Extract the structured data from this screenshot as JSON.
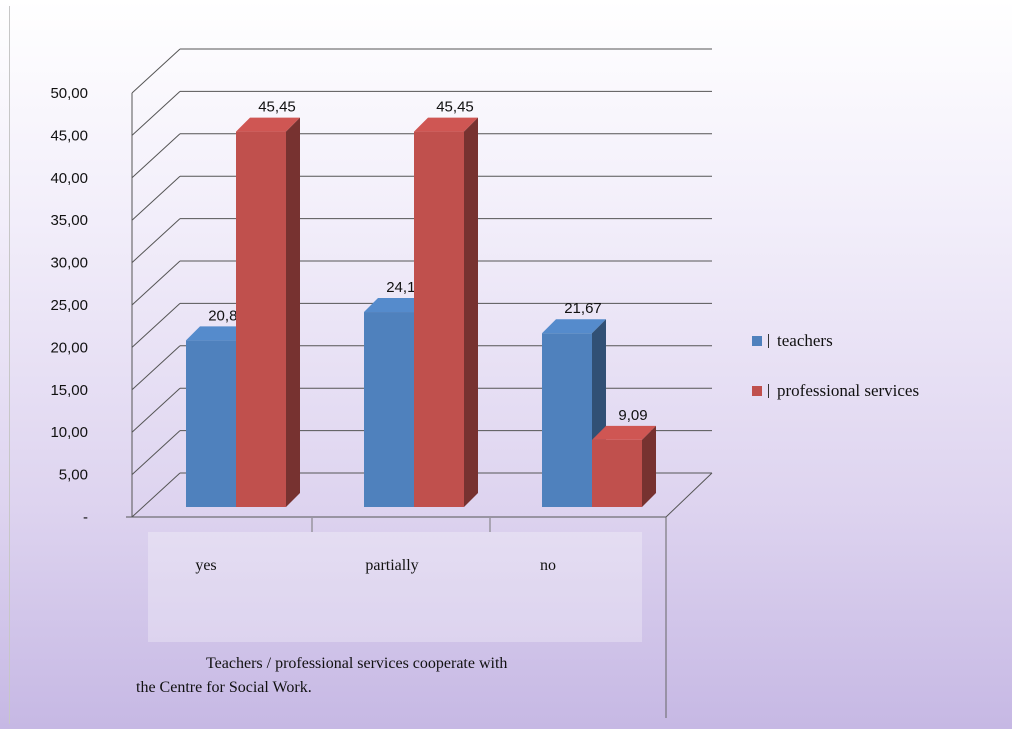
{
  "chart_data": {
    "type": "bar",
    "categories": [
      "yes",
      "partially",
      "no"
    ],
    "series": [
      {
        "name": "teachers",
        "color": "#4f81bd",
        "values": [
          20.83,
          24.17,
          21.67
        ],
        "labels": [
          "20,83",
          "24,17",
          "21,67"
        ]
      },
      {
        "name": "professional services",
        "color": "#c0504d",
        "values": [
          45.45,
          45.45,
          9.09
        ],
        "labels": [
          "45,45",
          "45,45",
          "9,09"
        ]
      }
    ],
    "ylim": [
      0,
      50
    ],
    "yticks": [
      "-",
      "5,00",
      "10,00",
      "15,00",
      "20,00",
      "25,00",
      "30,00",
      "35,00",
      "40,00",
      "45,00",
      "50,00"
    ],
    "grid": true,
    "legend_position": "right",
    "style": "3d-clustered-column"
  },
  "caption": {
    "line1": "Teachers / professional services cooperate with",
    "line2": "the Centre for Social Work."
  }
}
